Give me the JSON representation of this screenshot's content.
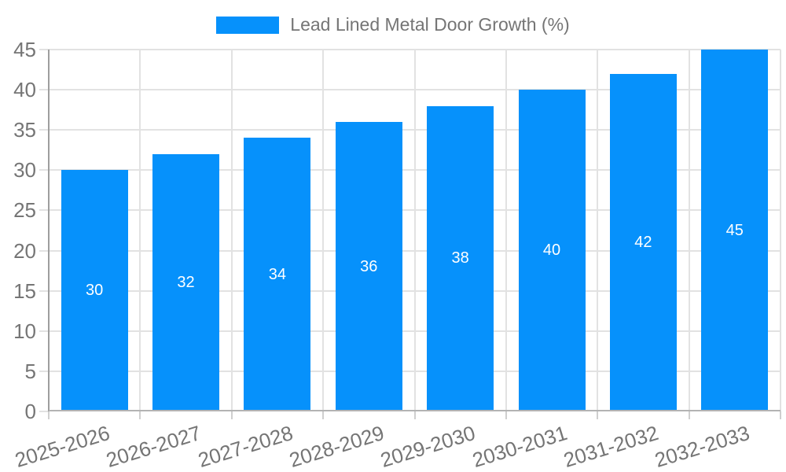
{
  "legend": {
    "label": "Lead Lined Metal Door Growth (%)"
  },
  "chart_data": {
    "type": "bar",
    "title": "Lead Lined Metal Door Growth (%)",
    "categories": [
      "2025-2026",
      "2026-2027",
      "2027-2028",
      "2028-2029",
      "2029-2030",
      "2030-2031",
      "2031-2032",
      "2032-2033"
    ],
    "values": [
      30,
      32,
      34,
      36,
      38,
      40,
      42,
      45
    ],
    "xlabel": "",
    "ylabel": "",
    "ylim": [
      0,
      45
    ],
    "ytick_step": 5,
    "yticks": [
      0,
      5,
      10,
      15,
      20,
      25,
      30,
      35,
      40,
      45
    ],
    "grid": true,
    "legend_position": "top",
    "xtick_rotation_deg": -17,
    "colors": {
      "bar": "#0691fb",
      "bar_label": "#ffffff",
      "axis_text": "#757575",
      "gridline": "#e2e2e2",
      "y_axis_line": "#9e9e9e",
      "x_axis_line": "#b3b3b3"
    }
  }
}
